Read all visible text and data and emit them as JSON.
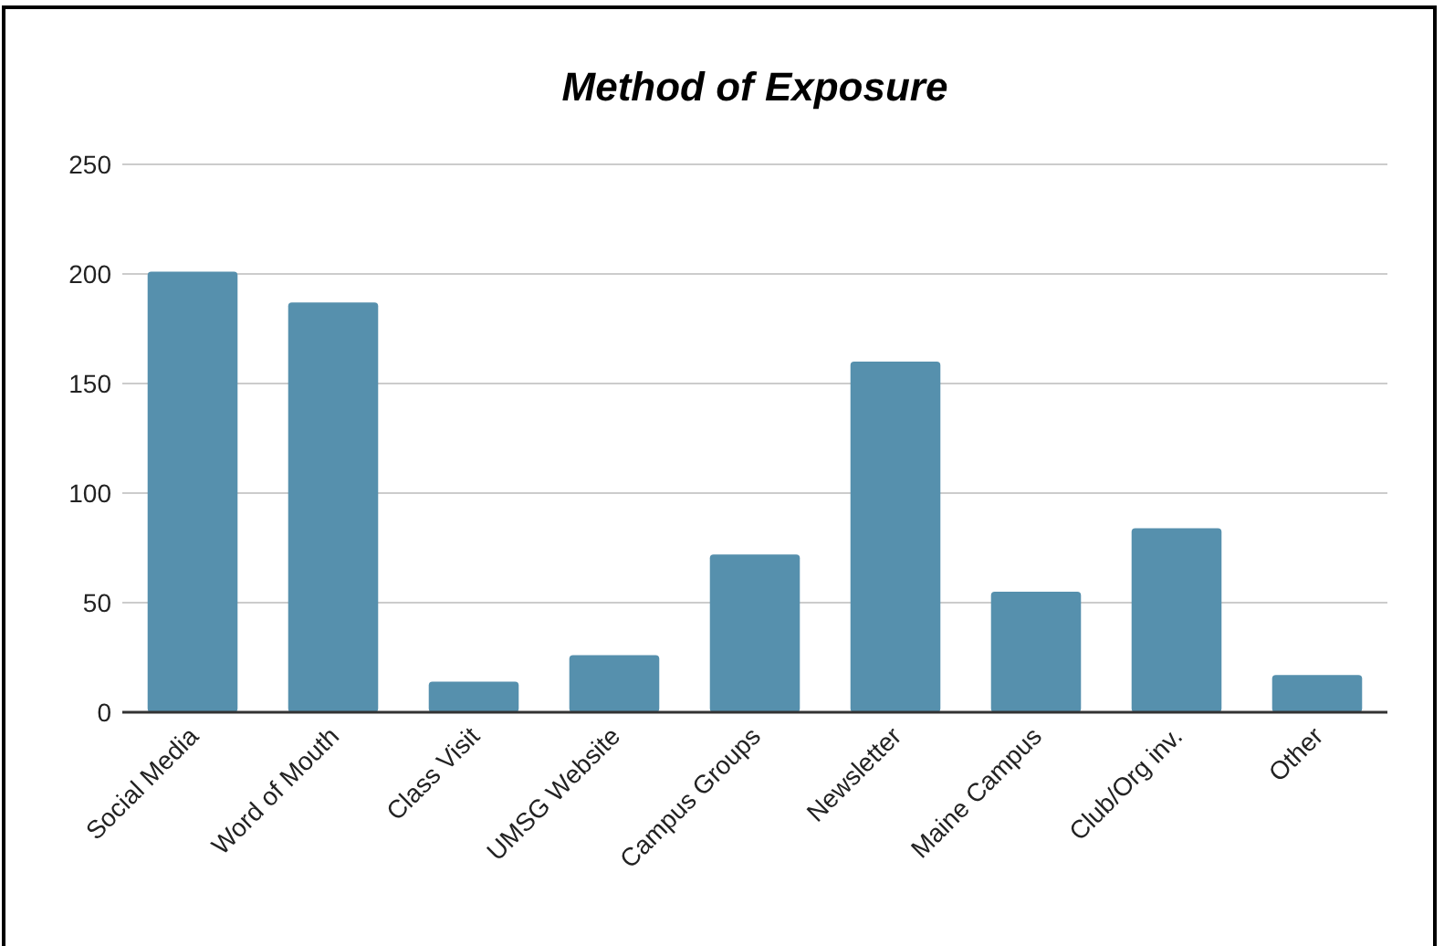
{
  "chart_data": {
    "type": "bar",
    "title": "Method of Exposure",
    "categories": [
      "Social Media",
      "Word of Mouth",
      "Class Visit",
      "UMSG Website",
      "Campus Groups",
      "Newsletter",
      "Maine Campus",
      "Club/Org inv.",
      "Other"
    ],
    "values": [
      201,
      187,
      14,
      26,
      72,
      160,
      55,
      84,
      17
    ],
    "color": "#5690ad",
    "ylim": [
      0,
      250
    ],
    "yticks": [
      0,
      50,
      100,
      150,
      200,
      250
    ],
    "grid": "y"
  }
}
